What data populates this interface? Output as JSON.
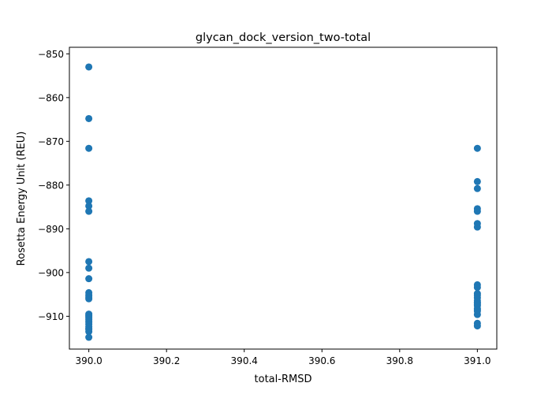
{
  "chart_data": {
    "type": "scatter",
    "title": "glycan_dock_version_two-total",
    "xlabel": "total-RMSD",
    "ylabel": "Rosetta Energy Unit (REU)",
    "xlim": [
      389.95,
      391.05
    ],
    "ylim": [
      -917.5,
      -848.5
    ],
    "xticks": [
      390.0,
      390.2,
      390.4,
      390.6,
      390.8,
      391.0
    ],
    "xtick_labels": [
      "390.0",
      "390.2",
      "390.4",
      "390.6",
      "390.8",
      "391.0"
    ],
    "yticks": [
      -910,
      -900,
      -890,
      -880,
      -870,
      -860,
      -850
    ],
    "ytick_labels": [
      "−910",
      "−900",
      "−890",
      "−880",
      "−870",
      "−860",
      "−850"
    ],
    "grid": false,
    "marker_color": "#1f77b4",
    "series": [
      {
        "x": [
          390.0,
          390.0,
          390.0,
          390.0,
          390.0,
          390.0,
          390.0,
          390.0,
          390.0,
          390.0,
          390.0,
          390.0,
          390.0,
          390.0,
          390.0,
          390.0,
          390.0,
          390.0,
          390.0,
          390.0,
          390.0,
          390.0,
          390.0,
          390.0,
          390.0,
          391.0,
          391.0,
          391.0,
          391.0,
          391.0,
          391.0,
          391.0,
          391.0,
          391.0,
          391.0,
          391.0,
          391.0,
          391.0,
          391.0,
          391.0,
          391.0,
          391.0,
          391.0,
          391.0,
          391.0,
          391.0,
          391.0,
          391.0
        ],
        "y": [
          -853.0,
          -864.8,
          -871.6,
          -883.6,
          -884.8,
          -886.0,
          -897.5,
          -899.0,
          -901.4,
          -904.6,
          -905.2,
          -906.0,
          -909.5,
          -910.0,
          -910.8,
          -911.3,
          -911.8,
          -912.4,
          -913.0,
          -913.5,
          -914.8,
          -909.8,
          -912.8,
          -905.6,
          -910.4,
          -871.6,
          -879.2,
          -880.8,
          -885.4,
          -886.0,
          -888.8,
          -889.6,
          -902.8,
          -903.4,
          -904.8,
          -905.8,
          -906.4,
          -907.0,
          -907.6,
          -908.2,
          -908.8,
          -909.6,
          -911.6,
          -912.2,
          -906.8,
          -907.3,
          -908.5,
          -905.2
        ]
      }
    ]
  }
}
